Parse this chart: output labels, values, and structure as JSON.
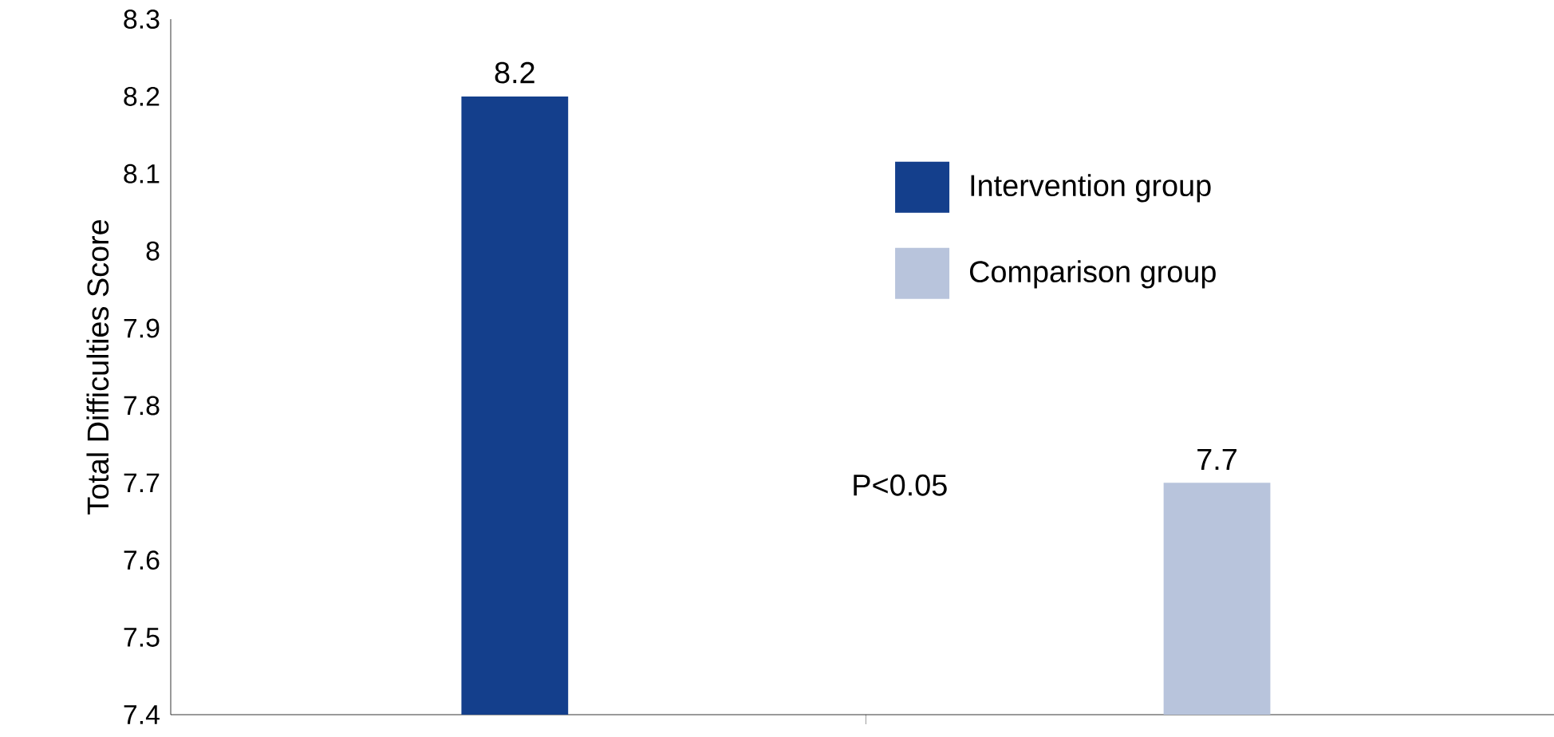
{
  "chart_data": {
    "type": "bar",
    "ylabel": "Total Difficulties Score",
    "categories": [
      null,
      null
    ],
    "series": [
      {
        "name": "Intervention group",
        "color": "#143f8c",
        "values": [
          8.2,
          null
        ]
      },
      {
        "name": "Comparison group",
        "color": "#b8c4dc",
        "values": [
          null,
          7.7
        ]
      }
    ],
    "ylim": [
      7.4,
      8.3
    ],
    "yticks": [
      7.4,
      7.5,
      7.6,
      7.7,
      7.8,
      7.9,
      8,
      8.1,
      8.2,
      8.3
    ],
    "data_labels": true,
    "legend": "right",
    "grid": false,
    "annotations": [
      "P<0.05"
    ]
  }
}
